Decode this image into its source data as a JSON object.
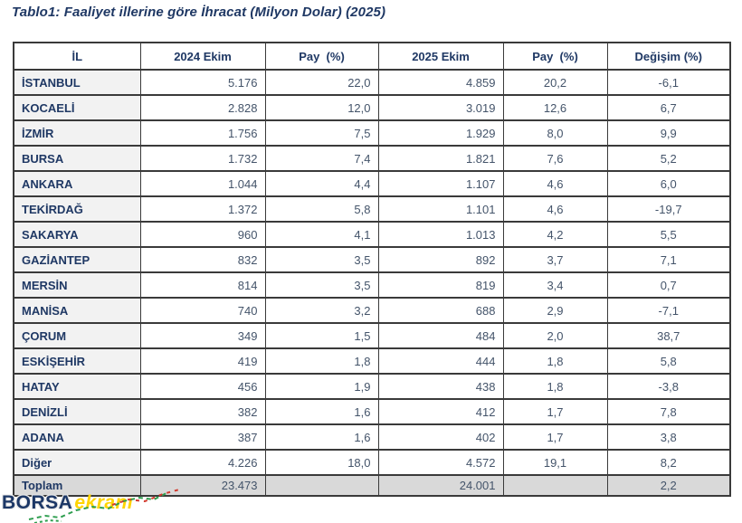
{
  "title": "Tablo1: Faaliyet illerine göre İhracat (Milyon Dolar) (2025)",
  "watermark": {
    "part1": "BORSA",
    "part2": "ekranı"
  },
  "colors": {
    "title_text": "#1f3864",
    "header_text": "#1f3864",
    "number_text": "#44546a",
    "label_cell_bg": "#f2f2f2",
    "total_row_bg": "#d9d9d9",
    "border": "#3a3a3a",
    "watermark_navy": "#1c3766",
    "watermark_yellow": "#ffd400",
    "spark_green": "#2e9e4f",
    "spark_red": "#d23b2f"
  },
  "chart_data": {
    "type": "table",
    "title": "Tablo1: Faaliyet illerine göre İhracat (Milyon Dolar) (2025)",
    "columns": [
      "İL",
      "2024 Ekim",
      "Pay  (%)",
      "2025 Ekim",
      "Pay  (%)",
      "Değişim (%)"
    ],
    "rows": [
      [
        "İSTANBUL",
        "5.176",
        "22,0",
        "4.859",
        "20,2",
        "-6,1"
      ],
      [
        "KOCAELİ",
        "2.828",
        "12,0",
        "3.019",
        "12,6",
        "6,7"
      ],
      [
        "İZMİR",
        "1.756",
        "7,5",
        "1.929",
        "8,0",
        "9,9"
      ],
      [
        "BURSA",
        "1.732",
        "7,4",
        "1.821",
        "7,6",
        "5,2"
      ],
      [
        "ANKARA",
        "1.044",
        "4,4",
        "1.107",
        "4,6",
        "6,0"
      ],
      [
        "TEKİRDAĞ",
        "1.372",
        "5,8",
        "1.101",
        "4,6",
        "-19,7"
      ],
      [
        "SAKARYA",
        "960",
        "4,1",
        "1.013",
        "4,2",
        "5,5"
      ],
      [
        "GAZİANTEP",
        "832",
        "3,5",
        "892",
        "3,7",
        "7,1"
      ],
      [
        "MERSİN",
        "814",
        "3,5",
        "819",
        "3,4",
        "0,7"
      ],
      [
        "MANİSA",
        "740",
        "3,2",
        "688",
        "2,9",
        "-7,1"
      ],
      [
        "ÇORUM",
        "349",
        "1,5",
        "484",
        "2,0",
        "38,7"
      ],
      [
        "ESKİŞEHİR",
        "419",
        "1,8",
        "444",
        "1,8",
        "5,8"
      ],
      [
        "HATAY",
        "456",
        "1,9",
        "438",
        "1,8",
        "-3,8"
      ],
      [
        "DENİZLİ",
        "382",
        "1,6",
        "412",
        "1,7",
        "7,8"
      ],
      [
        "ADANA",
        "387",
        "1,6",
        "402",
        "1,7",
        "3,8"
      ],
      [
        "Diğer",
        "4.226",
        "18,0",
        "4.572",
        "19,1",
        "8,2"
      ]
    ],
    "total_row": [
      "Toplam",
      "23.473",
      "",
      "24.001",
      "",
      "2,2"
    ]
  }
}
